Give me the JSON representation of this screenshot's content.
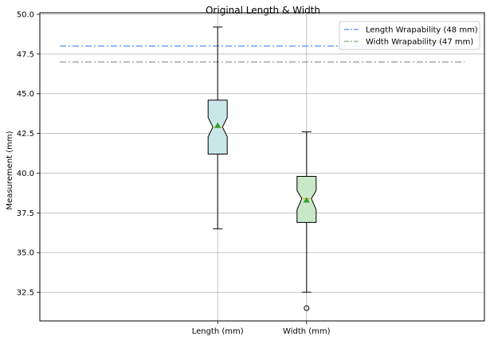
{
  "chart_data": {
    "type": "boxplot",
    "title": "Original Length & Width",
    "ylabel": "Measurement (mm)",
    "xlabel": "",
    "categories": [
      "Length (mm)",
      "Width (mm)"
    ],
    "ylim": [
      30.7,
      50.1
    ],
    "yticks": [
      32.5,
      35.0,
      37.5,
      40.0,
      42.5,
      45.0,
      47.5,
      50.0
    ],
    "ytick_labels": [
      "32.5",
      "35.0",
      "37.5",
      "40.0",
      "42.5",
      "45.0",
      "47.5",
      "50.0"
    ],
    "grid": true,
    "legend_position": "top-right",
    "boxes": [
      {
        "category": "Length (mm)",
        "whisker_low": 36.5,
        "q1": 41.2,
        "median": 42.9,
        "q3": 44.6,
        "whisker_high": 49.2,
        "mean": 43.0,
        "notch_low": 42.3,
        "notch_high": 43.5,
        "outliers": [],
        "fill": "#c9e6e8"
      },
      {
        "category": "Width (mm)",
        "whisker_low": 32.5,
        "q1": 36.9,
        "median": 38.4,
        "q3": 39.8,
        "whisker_high": 42.6,
        "mean": 38.3,
        "notch_low": 37.7,
        "notch_high": 38.9,
        "outliers": [
          31.5
        ],
        "fill": "#c9e8c9"
      }
    ],
    "reference_lines": [
      {
        "name": "Length Wrapability (48 mm)",
        "y": 48,
        "color": "#6aa4f5"
      },
      {
        "name": "Width Wrapability (47 mm)",
        "y": 47,
        "color": "#a8a8a8"
      }
    ],
    "legend": [
      {
        "label": "Length Wrapability (48 mm)",
        "color": "#6aa4f5"
      },
      {
        "label": "Width Wrapability (47 mm)",
        "color": "#8fb88f"
      }
    ],
    "mean_marker_color": "#2ca02c"
  }
}
